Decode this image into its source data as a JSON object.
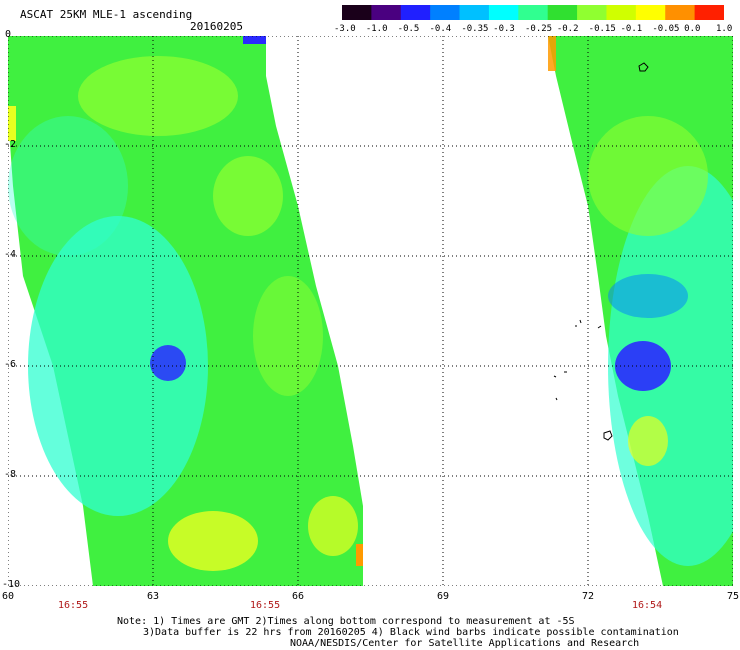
{
  "header": {
    "title": "ASCAT 25KM MLE-1 ascending",
    "date": "20160205"
  },
  "colorbar": {
    "labels": [
      "-3.0",
      "-1.0",
      "-0.5",
      "-0.4",
      "-0.35",
      "-0.3",
      "-0.25",
      "-0.2",
      "-0.15",
      "-0.1",
      "-0.05",
      "0.0",
      "1.0"
    ],
    "colors": [
      "#1a001a",
      "#4a0080",
      "#2020ff",
      "#0080ff",
      "#00c0ff",
      "#00ffff",
      "#30ff90",
      "#30e030",
      "#90ff30",
      "#d0ff00",
      "#ffff00",
      "#ff9000",
      "#ff2000"
    ]
  },
  "axes": {
    "y_ticks": [
      "0",
      "-2",
      "-4",
      "-6",
      "-8",
      "-10"
    ],
    "x_ticks": [
      "60",
      "63",
      "66",
      "69",
      "72",
      "75"
    ],
    "times": [
      "16:55",
      "16:55",
      "16:54"
    ]
  },
  "notes": {
    "line1": "Note: 1) Times are GMT 2)Times along bottom correspond to measurement at -5S",
    "line2": "3)Data buffer is 22 hrs from 20160205 4) Black wind barbs indicate possible contamination",
    "line3": "NOAA/NESDIS/Center for Satellite Applications and Research"
  },
  "map_colors": {
    "green": "#40f040",
    "lime": "#90ff30",
    "cyan": "#30ffd0",
    "blue": "#2a2aff",
    "yellow": "#e8ff20",
    "orange": "#ff9a00"
  }
}
